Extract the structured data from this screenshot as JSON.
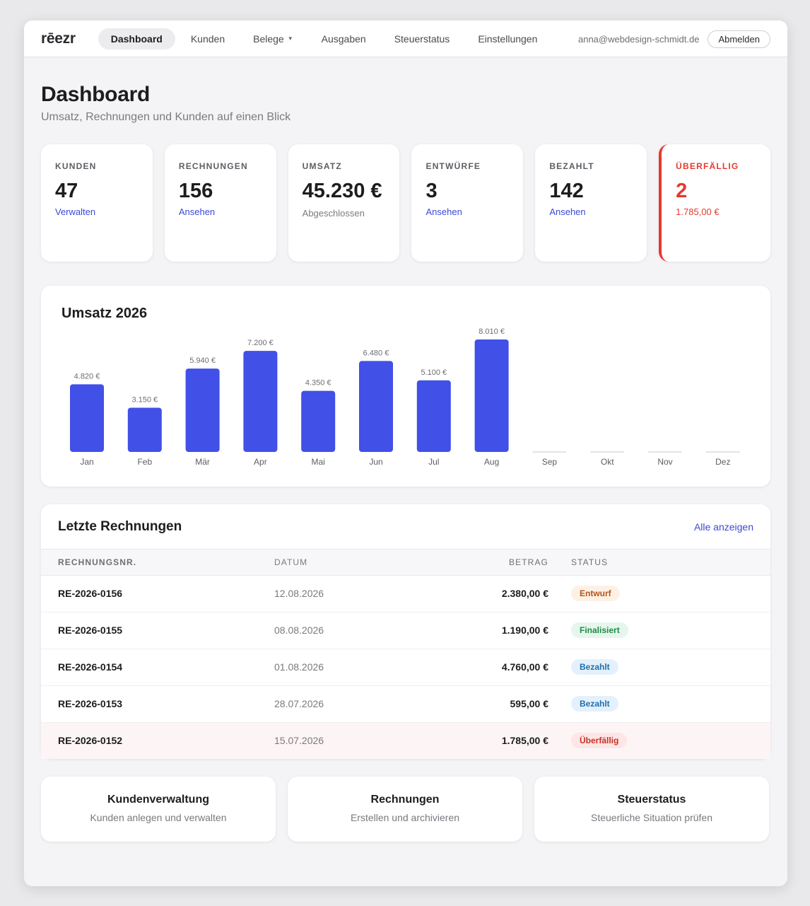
{
  "app": {
    "logo": "rēezr"
  },
  "nav": {
    "items": [
      {
        "label": "Dashboard",
        "active": true
      },
      {
        "label": "Kunden"
      },
      {
        "label": "Belege",
        "dropdown": true
      },
      {
        "label": "Ausgaben"
      },
      {
        "label": "Steuerstatus"
      },
      {
        "label": "Einstellungen"
      }
    ]
  },
  "user": {
    "email": "anna@webdesign-schmidt.de",
    "logout_label": "Abmelden"
  },
  "page": {
    "title": "Dashboard",
    "subtitle": "Umsatz, Rechnungen und Kunden auf einen Blick"
  },
  "stats": [
    {
      "label": "KUNDEN",
      "value": "47",
      "link": "Verwalten"
    },
    {
      "label": "RECHNUNGEN",
      "value": "156",
      "link": "Ansehen"
    },
    {
      "label": "UMSATZ",
      "value": "45.230 €",
      "note": "Abgeschlossen"
    },
    {
      "label": "ENTWÜRFE",
      "value": "3",
      "link": "Ansehen"
    },
    {
      "label": "BEZAHLT",
      "value": "142",
      "link": "Ansehen"
    },
    {
      "label": "ÜBERFÄLLIG",
      "value": "2",
      "link": "1.785,00 €",
      "alert": true
    }
  ],
  "chart_data": {
    "type": "bar",
    "title": "Umsatz 2026",
    "categories": [
      "Jan",
      "Feb",
      "Mär",
      "Apr",
      "Mai",
      "Jun",
      "Jul",
      "Aug",
      "Sep",
      "Okt",
      "Nov",
      "Dez"
    ],
    "values": [
      4820,
      3150,
      5940,
      7200,
      4350,
      6480,
      5100,
      8010,
      0,
      0,
      0,
      0
    ],
    "value_labels": [
      "4.820 €",
      "3.150 €",
      "5.940 €",
      "7.200 €",
      "4.350 €",
      "6.480 €",
      "5.100 €",
      "8.010 €",
      "",
      "",
      "",
      ""
    ],
    "ylim": [
      0,
      8010
    ],
    "bar_color": "#4150e6",
    "empty_color": "#e4e4e8",
    "grid": false
  },
  "invoices": {
    "title": "Letzte Rechnungen",
    "all_link": "Alle anzeigen",
    "columns": [
      "RECHNUNGSNR.",
      "DATUM",
      "BETRAG",
      "STATUS"
    ],
    "rows": [
      {
        "number": "RE-2026-0156",
        "date": "12.08.2026",
        "amount": "2.380,00 €",
        "status": "Entwurf",
        "status_bg": "#fdf1e6",
        "status_color": "#b4531a"
      },
      {
        "number": "RE-2026-0155",
        "date": "08.08.2026",
        "amount": "1.190,00 €",
        "status": "Finalisiert",
        "status_bg": "#e6f6ec",
        "status_color": "#1f8a48"
      },
      {
        "number": "RE-2026-0154",
        "date": "01.08.2026",
        "amount": "4.760,00 €",
        "status": "Bezahlt",
        "status_bg": "#e4f1fc",
        "status_color": "#1f6fb0"
      },
      {
        "number": "RE-2026-0153",
        "date": "28.07.2026",
        "amount": "595,00 €",
        "status": "Bezahlt",
        "status_bg": "#e4f1fc",
        "status_color": "#1f6fb0"
      },
      {
        "number": "RE-2026-0152",
        "date": "15.07.2026",
        "amount": "1.785,00 €",
        "status": "Überfällig",
        "status_bg": "#fde6e5",
        "status_color": "#c6322a",
        "overdue": true
      }
    ]
  },
  "tiles": [
    {
      "title": "Kundenverwaltung",
      "subtitle": "Kunden anlegen und verwalten"
    },
    {
      "title": "Rechnungen",
      "subtitle": "Erstellen und archivieren"
    },
    {
      "title": "Steuerstatus",
      "subtitle": "Steuerliche Situation prüfen"
    }
  ],
  "colors": {
    "accent": "#3b48d8",
    "alert": "#e5392f"
  }
}
